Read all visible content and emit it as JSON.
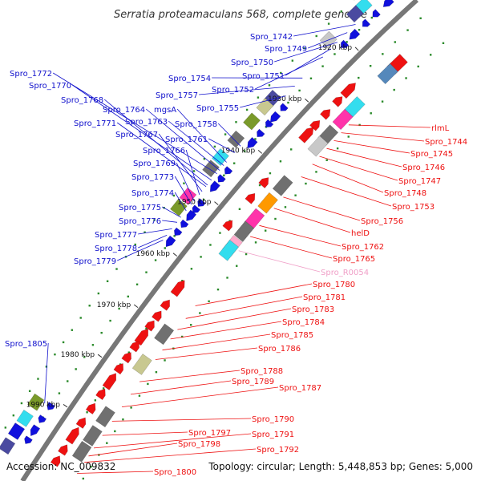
{
  "title": "Serratia proteamaculans 568, complete genome",
  "footer": {
    "accession": "Accession: NC_009832",
    "stats": "Topology: circular; Length: 5,448,853 bp; Genes: 5,000"
  },
  "ticks": [
    "1920 kbp",
    "1930 kbp",
    "1940 kbp",
    "1950 kbp",
    "1960 kbp",
    "1970 kbp",
    "1980 kbp",
    "1990 kbp"
  ],
  "colors": {
    "forward_label": "#1010cc",
    "reverse_label": "#ee1111",
    "rna_label": "#f0a0c8",
    "backbone": "#777777"
  },
  "left_labels": [
    "Spro_1742",
    "Spro_1749",
    "Spro_1750",
    "Spro_1751",
    "Spro_1752",
    "Spro_1754",
    "Spro_1757",
    "Spro_1755",
    "Spro_1772",
    "Spro_1770",
    "Spro_1768",
    "Spro_1764",
    "mgsA",
    "Spro_1771",
    "Spro_1763",
    "Spro_1758",
    "Spro_1767",
    "Spro_1761",
    "Spro_1766",
    "Spro_1769",
    "Spro_1773",
    "Spro_1774",
    "Spro_1775",
    "Spro_1776",
    "Spro_1777",
    "Spro_1778",
    "Spro_1779",
    "Spro_1805"
  ],
  "right_labels": [
    "rlmL",
    "Spro_1744",
    "Spro_1745",
    "Spro_1746",
    "Spro_1747",
    "Spro_1748",
    "Spro_1753",
    "Spro_1756",
    "helD",
    "Spro_1762",
    "Spro_1765",
    "Spro_R0054",
    "Spro_1780",
    "Spro_1781",
    "Spro_1783",
    "Spro_1784",
    "Spro_1785",
    "Spro_1786",
    "Spro_1788",
    "Spro_1789",
    "Spro_1787",
    "Spro_1790",
    "Spro_1797",
    "Spro_1791",
    "Spro_1798",
    "Spro_1792",
    "Spro_1800"
  ]
}
